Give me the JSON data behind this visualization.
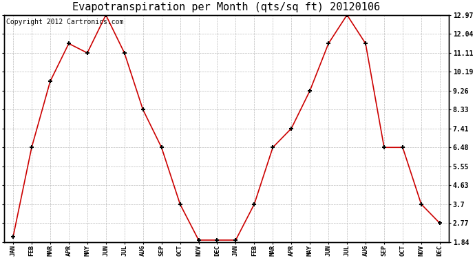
{
  "title": "Evapotranspiration per Month (qts/sq ft) 20120106",
  "copyright": "Copyright 2012 Cartronics.com",
  "x_labels": [
    "JAN",
    "FEB",
    "MAR",
    "APR",
    "MAY",
    "JUN",
    "JUL",
    "AUG",
    "SEP",
    "OCT",
    "NOV",
    "DEC",
    "JAN",
    "FEB",
    "MAR",
    "APR",
    "MAY",
    "JUN",
    "JUL",
    "AUG",
    "SEP",
    "OCT",
    "NOV",
    "DEC"
  ],
  "y_values": [
    2.1,
    6.48,
    9.72,
    11.57,
    11.11,
    12.97,
    11.11,
    8.33,
    6.48,
    3.7,
    1.94,
    1.94,
    1.94,
    3.7,
    6.48,
    7.41,
    9.26,
    11.57,
    12.97,
    11.57,
    6.48,
    6.48,
    3.7,
    2.77
  ],
  "y_ticks": [
    1.84,
    2.77,
    3.7,
    4.63,
    5.55,
    6.48,
    7.41,
    8.33,
    9.26,
    10.19,
    11.11,
    12.04,
    12.97
  ],
  "y_min": 1.84,
  "y_max": 12.97,
  "line_color": "#cc0000",
  "marker_color": "#000000",
  "bg_color": "#ffffff",
  "grid_color": "#bbbbbb",
  "title_fontsize": 11,
  "copyright_fontsize": 7
}
